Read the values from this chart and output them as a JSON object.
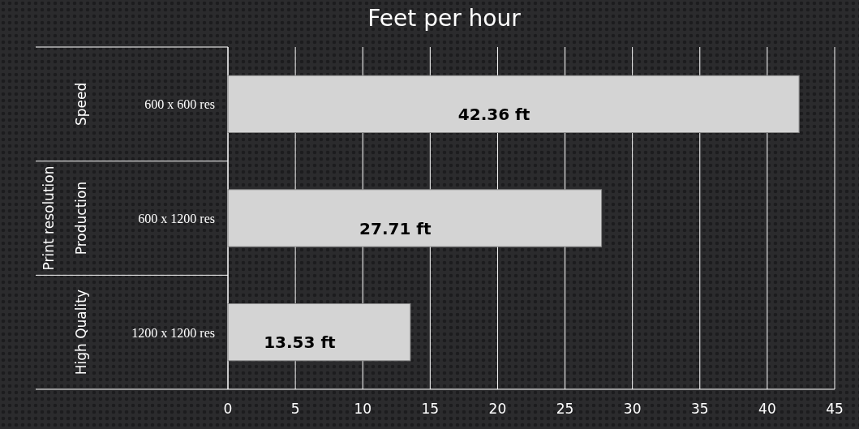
{
  "chart_data": {
    "type": "bar",
    "orientation": "horizontal",
    "title": "Feet per hour",
    "categories": [
      "600 x 600 res",
      "600 x 1200 res",
      "1200 x 1200 res"
    ],
    "values": [
      42.36,
      27.71,
      13.53
    ],
    "value_labels": [
      "42.36 ft",
      "27.71 ft",
      "13.53 ft"
    ],
    "color": "#d4d4d4",
    "xlim": [
      0,
      45
    ],
    "xticks": [
      0,
      5,
      10,
      15,
      20,
      25,
      30,
      35,
      40,
      45
    ],
    "grid": "x",
    "annotations": [
      "Speed",
      "Production",
      "High Quality",
      "Print resolution"
    ]
  }
}
